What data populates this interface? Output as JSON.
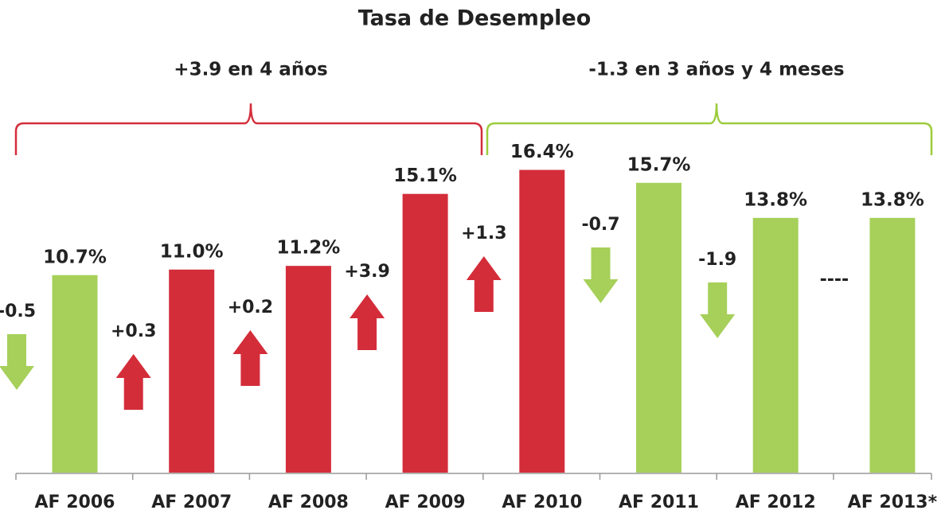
{
  "chart_data": {
    "type": "bar",
    "title": "Tasa de Desempleo",
    "categories": [
      "AF 2006",
      "AF 2007",
      "AF 2008",
      "AF 2009",
      "AF 2010",
      "AF 2011",
      "AF 2012",
      "AF 2013*"
    ],
    "values": [
      10.7,
      11.0,
      11.2,
      15.1,
      16.4,
      15.7,
      13.8,
      13.8
    ],
    "value_labels": [
      "10.7%",
      "11.0%",
      "11.2%",
      "15.1%",
      "16.4%",
      "15.7%",
      "13.8%",
      "13.8%"
    ],
    "colors": [
      "#a6d05a",
      "#d42d3a",
      "#d42d3a",
      "#d42d3a",
      "#d42d3a",
      "#a6d05a",
      "#a6d05a",
      "#a6d05a"
    ],
    "changes": {
      "values": [
        -0.5,
        0.3,
        0.2,
        3.9,
        1.3,
        -0.7,
        -1.9,
        null
      ],
      "value_labels": [
        "-0.5",
        "+0.3",
        "+0.2",
        "+3.9",
        "+1.3",
        "-0.7",
        "-1.9",
        "----"
      ]
    },
    "annotations": [
      {
        "text": "+3.9 en 4 años",
        "color": "#d42d3a"
      },
      {
        "text": "-1.3 en 3 años y 4 meses",
        "color": "#9ccc3c"
      }
    ]
  }
}
